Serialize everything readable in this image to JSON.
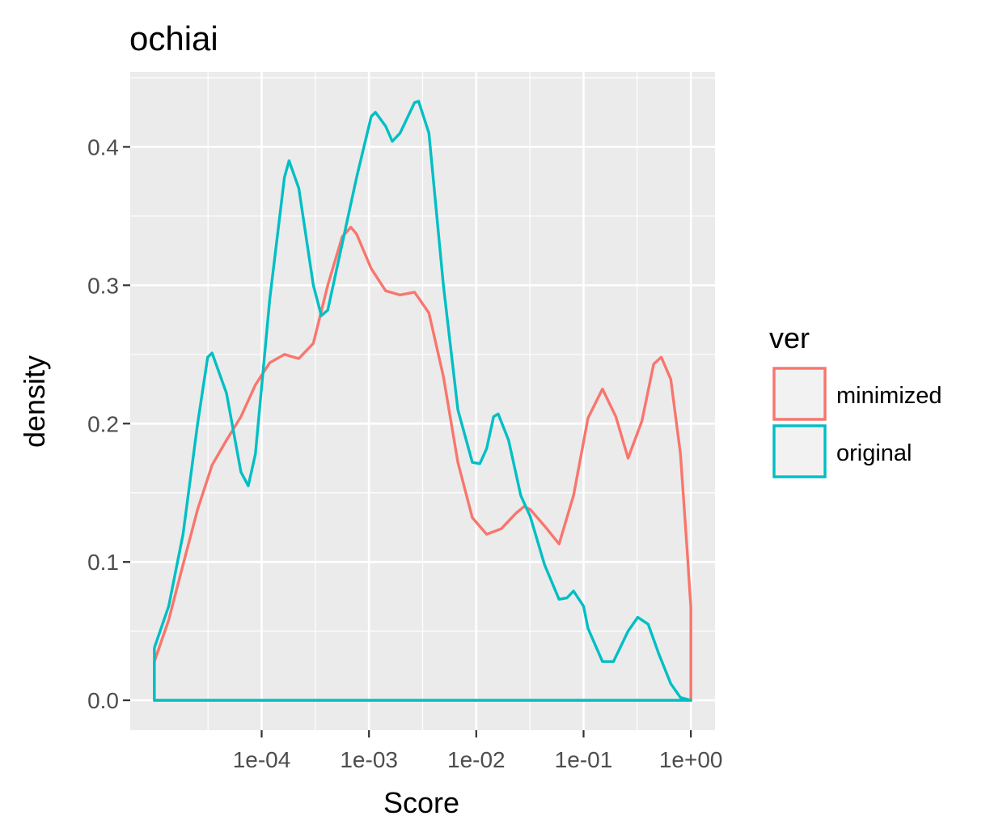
{
  "chart_data": {
    "type": "line",
    "title": "ochiai",
    "xlabel": "Score",
    "ylabel": "density",
    "x_scale": "log10",
    "xlim": [
      1e-05,
      1.0
    ],
    "ylim": [
      0,
      0.45
    ],
    "x_ticks": [
      {
        "value": 0.0001,
        "label": "1e-04"
      },
      {
        "value": 0.001,
        "label": "1e-03"
      },
      {
        "value": 0.01,
        "label": "1e-02"
      },
      {
        "value": 0.1,
        "label": "1e-01"
      },
      {
        "value": 1.0,
        "label": "1e+00"
      }
    ],
    "y_ticks": [
      {
        "value": 0.0,
        "label": "0.0"
      },
      {
        "value": 0.1,
        "label": "0.1"
      },
      {
        "value": 0.2,
        "label": "0.2"
      },
      {
        "value": 0.3,
        "label": "0.3"
      },
      {
        "value": 0.4,
        "label": "0.4"
      }
    ],
    "grid": true,
    "legend": {
      "title": "ver",
      "position": "right"
    },
    "series": [
      {
        "name": "minimized",
        "color": "#F8766D",
        "points": [
          [
            1e-05,
            0.028
          ],
          [
            1.36e-05,
            0.058
          ],
          [
            1.85e-05,
            0.098
          ],
          [
            2.53e-05,
            0.138
          ],
          [
            3.45e-05,
            0.17
          ],
          [
            4.7e-05,
            0.188
          ],
          [
            6.41e-05,
            0.205
          ],
          [
            8.74e-05,
            0.228
          ],
          [
            0.000119,
            0.244
          ],
          [
            0.000163,
            0.25
          ],
          [
            0.000222,
            0.247
          ],
          [
            0.000303,
            0.258
          ],
          [
            0.000413,
            0.3
          ],
          [
            0.000563,
            0.335
          ],
          [
            0.000677,
            0.342
          ],
          [
            0.000767,
            0.337
          ],
          [
            0.00105,
            0.312
          ],
          [
            0.00143,
            0.296
          ],
          [
            0.00195,
            0.293
          ],
          [
            0.00266,
            0.295
          ],
          [
            0.00362,
            0.28
          ],
          [
            0.00494,
            0.234
          ],
          [
            0.00674,
            0.172
          ],
          [
            0.00919,
            0.132
          ],
          [
            0.0125,
            0.12
          ],
          [
            0.0171,
            0.124
          ],
          [
            0.0233,
            0.135
          ],
          [
            0.0278,
            0.14
          ],
          [
            0.0318,
            0.138
          ],
          [
            0.0433,
            0.126
          ],
          [
            0.0591,
            0.113
          ],
          [
            0.0806,
            0.148
          ],
          [
            0.11,
            0.204
          ],
          [
            0.15,
            0.225
          ],
          [
            0.2,
            0.205
          ],
          [
            0.26,
            0.175
          ],
          [
            0.35,
            0.202
          ],
          [
            0.45,
            0.243
          ],
          [
            0.53,
            0.248
          ],
          [
            0.65,
            0.232
          ],
          [
            0.8,
            0.178
          ],
          [
            0.92,
            0.11
          ],
          [
            1.0,
            0.067
          ],
          [
            1.0,
            0.0
          ],
          [
            1e-05,
            0.0
          ],
          [
            1e-05,
            0.028
          ]
        ]
      },
      {
        "name": "original",
        "color": "#00BFC4",
        "points": [
          [
            1e-05,
            0.038
          ],
          [
            1.36e-05,
            0.068
          ],
          [
            1.85e-05,
            0.12
          ],
          [
            2.53e-05,
            0.2
          ],
          [
            3.14e-05,
            0.248
          ],
          [
            3.45e-05,
            0.251
          ],
          [
            4.7e-05,
            0.222
          ],
          [
            6.41e-05,
            0.165
          ],
          [
            7.5e-05,
            0.155
          ],
          [
            8.74e-05,
            0.178
          ],
          [
            0.000119,
            0.29
          ],
          [
            0.000163,
            0.378
          ],
          [
            0.00018,
            0.39
          ],
          [
            0.000222,
            0.37
          ],
          [
            0.000303,
            0.3
          ],
          [
            0.00036,
            0.278
          ],
          [
            0.000413,
            0.282
          ],
          [
            0.000563,
            0.33
          ],
          [
            0.000767,
            0.378
          ],
          [
            0.00105,
            0.422
          ],
          [
            0.00115,
            0.425
          ],
          [
            0.00143,
            0.415
          ],
          [
            0.00165,
            0.404
          ],
          [
            0.00195,
            0.41
          ],
          [
            0.00266,
            0.432
          ],
          [
            0.0029,
            0.433
          ],
          [
            0.00362,
            0.41
          ],
          [
            0.00494,
            0.3
          ],
          [
            0.00674,
            0.21
          ],
          [
            0.00919,
            0.172
          ],
          [
            0.0108,
            0.171
          ],
          [
            0.0125,
            0.182
          ],
          [
            0.0145,
            0.205
          ],
          [
            0.016,
            0.207
          ],
          [
            0.02,
            0.188
          ],
          [
            0.026,
            0.148
          ],
          [
            0.0318,
            0.133
          ],
          [
            0.0433,
            0.098
          ],
          [
            0.0591,
            0.073
          ],
          [
            0.07,
            0.074
          ],
          [
            0.0806,
            0.079
          ],
          [
            0.1,
            0.068
          ],
          [
            0.11,
            0.052
          ],
          [
            0.15,
            0.028
          ],
          [
            0.19,
            0.028
          ],
          [
            0.26,
            0.05
          ],
          [
            0.32,
            0.06
          ],
          [
            0.4,
            0.055
          ],
          [
            0.5,
            0.034
          ],
          [
            0.65,
            0.012
          ],
          [
            0.8,
            0.002
          ],
          [
            1.0,
            0.0
          ],
          [
            1e-05,
            0.0
          ],
          [
            1e-05,
            0.038
          ]
        ]
      }
    ]
  }
}
